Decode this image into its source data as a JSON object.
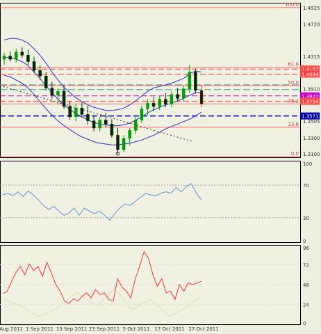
{
  "chart_data": [
    {
      "type": "line",
      "subtype": "candlestick-with-indicators",
      "x_labels": [
        "Aug 2011",
        "1 Sep 2011",
        "13 Sep 2011",
        "23 Sep 2011",
        "5 Oct 2011",
        "17 Oct 2011",
        "27 Oct 2011"
      ],
      "y_ticks": [
        "1.4925",
        "1.4720",
        "1.4315",
        "1.3910",
        "1.3505",
        "1.3300",
        "1.3100"
      ],
      "ylim": [
        1.3055,
        1.4985
      ],
      "fib_levels": [
        {
          "label": "100.0",
          "value": 1.4925
        },
        {
          "label": "61.8",
          "value": 1.418
        },
        {
          "label": "50.0",
          "value": 1.395
        },
        {
          "label": "38.2",
          "value": 1.372
        },
        {
          "label": "23.6",
          "value": 1.343
        },
        {
          "label": "0.0",
          "value": 1.298
        }
      ],
      "price_tags": [
        {
          "label": "1.4157",
          "value": 1.4157
        },
        {
          "label": "1.4094",
          "value": 1.4094
        },
        {
          "label": "1.3822",
          "value": 1.3822
        },
        {
          "label": "1.3754",
          "value": 1.3754
        },
        {
          "label": "1.3571",
          "value": 1.3571
        }
      ],
      "candles": [
        {
          "o": 1.428,
          "h": 1.436,
          "l": 1.421,
          "c": 1.432
        },
        {
          "o": 1.432,
          "h": 1.438,
          "l": 1.425,
          "c": 1.428
        },
        {
          "o": 1.428,
          "h": 1.441,
          "l": 1.424,
          "c": 1.437
        },
        {
          "o": 1.437,
          "h": 1.443,
          "l": 1.43,
          "c": 1.433
        },
        {
          "o": 1.433,
          "h": 1.44,
          "l": 1.421,
          "c": 1.425
        },
        {
          "o": 1.425,
          "h": 1.431,
          "l": 1.411,
          "c": 1.414
        },
        {
          "o": 1.414,
          "h": 1.42,
          "l": 1.402,
          "c": 1.407
        },
        {
          "o": 1.407,
          "h": 1.412,
          "l": 1.389,
          "c": 1.392
        },
        {
          "o": 1.392,
          "h": 1.4,
          "l": 1.378,
          "c": 1.383
        },
        {
          "o": 1.383,
          "h": 1.392,
          "l": 1.372,
          "c": 1.388
        },
        {
          "o": 1.388,
          "h": 1.395,
          "l": 1.366,
          "c": 1.369
        },
        {
          "o": 1.369,
          "h": 1.376,
          "l": 1.352,
          "c": 1.356
        },
        {
          "o": 1.356,
          "h": 1.372,
          "l": 1.35,
          "c": 1.367
        },
        {
          "o": 1.367,
          "h": 1.374,
          "l": 1.355,
          "c": 1.359
        },
        {
          "o": 1.359,
          "h": 1.37,
          "l": 1.346,
          "c": 1.351
        },
        {
          "o": 1.351,
          "h": 1.358,
          "l": 1.338,
          "c": 1.342
        },
        {
          "o": 1.342,
          "h": 1.356,
          "l": 1.338,
          "c": 1.352
        },
        {
          "o": 1.352,
          "h": 1.361,
          "l": 1.343,
          "c": 1.347
        },
        {
          "o": 1.347,
          "h": 1.353,
          "l": 1.33,
          "c": 1.333
        },
        {
          "o": 1.333,
          "h": 1.342,
          "l": 1.31,
          "c": 1.315
        },
        {
          "o": 1.315,
          "h": 1.333,
          "l": 1.312,
          "c": 1.329
        },
        {
          "o": 1.329,
          "h": 1.342,
          "l": 1.32,
          "c": 1.339
        },
        {
          "o": 1.339,
          "h": 1.356,
          "l": 1.334,
          "c": 1.352
        },
        {
          "o": 1.352,
          "h": 1.37,
          "l": 1.348,
          "c": 1.366
        },
        {
          "o": 1.366,
          "h": 1.378,
          "l": 1.358,
          "c": 1.373
        },
        {
          "o": 1.373,
          "h": 1.381,
          "l": 1.363,
          "c": 1.369
        },
        {
          "o": 1.369,
          "h": 1.382,
          "l": 1.364,
          "c": 1.378
        },
        {
          "o": 1.378,
          "h": 1.386,
          "l": 1.368,
          "c": 1.372
        },
        {
          "o": 1.372,
          "h": 1.388,
          "l": 1.368,
          "c": 1.384
        },
        {
          "o": 1.384,
          "h": 1.392,
          "l": 1.376,
          "c": 1.379
        },
        {
          "o": 1.379,
          "h": 1.395,
          "l": 1.375,
          "c": 1.391
        },
        {
          "o": 1.391,
          "h": 1.421,
          "l": 1.386,
          "c": 1.412
        },
        {
          "o": 1.412,
          "h": 1.416,
          "l": 1.385,
          "c": 1.389
        },
        {
          "o": 1.389,
          "h": 1.395,
          "l": 1.368,
          "c": 1.372
        }
      ],
      "ma_values": [
        1.43,
        1.43,
        1.428,
        1.425,
        1.42,
        1.412,
        1.404,
        1.395,
        1.386,
        1.378,
        1.371,
        1.365,
        1.36,
        1.356,
        1.352,
        1.349,
        1.347,
        1.346,
        1.345,
        1.345,
        1.346,
        1.348,
        1.352,
        1.356,
        1.361,
        1.365,
        1.368,
        1.371,
        1.373,
        1.376,
        1.379,
        1.383,
        1.386,
        1.387
      ],
      "band_upper": [
        1.452,
        1.454,
        1.454,
        1.452,
        1.448,
        1.441,
        1.433,
        1.423,
        1.412,
        1.402,
        1.393,
        1.386,
        1.38,
        1.375,
        1.371,
        1.368,
        1.366,
        1.364,
        1.364,
        1.365,
        1.367,
        1.371,
        1.376,
        1.382,
        1.388,
        1.392,
        1.394,
        1.396,
        1.398,
        1.401,
        1.404,
        1.41,
        1.413,
        1.412
      ],
      "band_lower": [
        1.408,
        1.406,
        1.402,
        1.398,
        1.392,
        1.384,
        1.375,
        1.366,
        1.358,
        1.351,
        1.345,
        1.34,
        1.335,
        1.331,
        1.328,
        1.325,
        1.323,
        1.322,
        1.321,
        1.321,
        1.322,
        1.323,
        1.325,
        1.327,
        1.33,
        1.333,
        1.337,
        1.341,
        1.344,
        1.347,
        1.35,
        1.353,
        1.357,
        1.362
      ],
      "trendline": [
        1.395,
        1.325
      ]
    },
    {
      "type": "line",
      "y_ticks": [
        "100",
        "70",
        "30",
        "0"
      ],
      "ylim": [
        0,
        100
      ],
      "series": [
        {
          "values": [
            58,
            60,
            57,
            62,
            56,
            63,
            58,
            52,
            45,
            40,
            44,
            38,
            33,
            36,
            42,
            33,
            42,
            38,
            35,
            38,
            33,
            27,
            35,
            42,
            47,
            45,
            50,
            55,
            60,
            58,
            57,
            60,
            62,
            60,
            67,
            62,
            68,
            72,
            60,
            52
          ]
        }
      ]
    },
    {
      "type": "line",
      "y_ticks": [
        "96",
        "72",
        "48",
        "24",
        "0"
      ],
      "ylim": [
        0,
        96
      ],
      "series": [
        {
          "values": [
            37,
            40,
            52,
            63,
            70,
            60,
            73,
            65,
            70,
            58,
            75,
            62,
            48,
            40,
            28,
            25,
            31,
            28,
            34,
            38,
            32,
            42,
            36,
            38,
            30,
            28,
            55,
            45,
            40,
            32,
            55,
            70,
            88,
            80,
            60,
            46,
            55,
            38,
            40,
            30,
            48,
            40,
            50,
            48,
            50,
            52
          ]
        }
      ]
    }
  ]
}
